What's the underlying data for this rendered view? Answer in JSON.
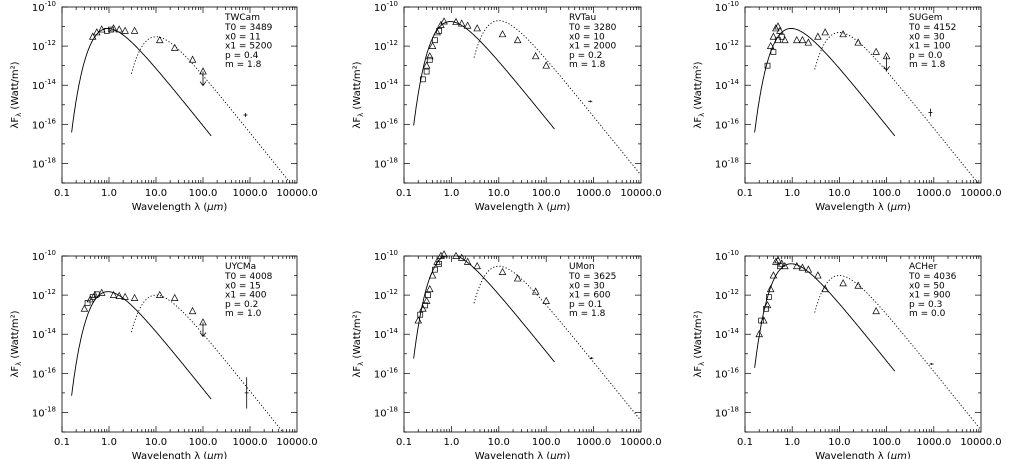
{
  "chart_data": [
    {
      "type": "line",
      "star": "TWCam",
      "params": [
        {
          "key": "T0",
          "value": "3489"
        },
        {
          "key": "x0",
          "value": "11"
        },
        {
          "key": "x1",
          "value": "5200"
        },
        {
          "key": "p",
          "value": "0.4"
        },
        {
          "key": "m",
          "value": "1.8"
        }
      ],
      "xlabel": "Wavelength λ (μm)",
      "ylabel": "λF_λ (Watt/m²)",
      "x_scale": "log",
      "y_scale": "log",
      "xlim": [
        0.1,
        10000
      ],
      "ylim": [
        1e-19,
        1e-10
      ],
      "x_ticks": [
        "0.1",
        "1.0",
        "10.0",
        "100.0",
        "1000.0",
        "10000.0"
      ],
      "y_ticks": [
        -10,
        -12,
        -14,
        -16,
        -18
      ],
      "photosphere_peak": 8e-12,
      "dust_peak": 3e-12,
      "triangles": [
        [
          0.45,
          3e-12
        ],
        [
          0.55,
          5e-12
        ],
        [
          0.7,
          7e-12
        ],
        [
          1.25,
          8e-12
        ],
        [
          1.65,
          7e-12
        ],
        [
          2.2,
          6e-12
        ],
        [
          3.5,
          6e-12
        ],
        [
          12,
          2e-12
        ],
        [
          25,
          8e-13
        ],
        [
          60,
          2e-13
        ],
        [
          100,
          5e-14
        ]
      ],
      "squares": [
        [
          0.9,
          6e-12
        ],
        [
          1.1,
          7e-12
        ]
      ],
      "upper_limits": [
        [
          100,
          5e-14
        ]
      ],
      "errorbars": [
        [
          800,
          3e-16,
          0.1
        ]
      ]
    },
    {
      "type": "line",
      "star": "RVTau",
      "params": [
        {
          "key": "T0",
          "value": "3280"
        },
        {
          "key": "x0",
          "value": "10"
        },
        {
          "key": "x1",
          "value": "2000"
        },
        {
          "key": "p",
          "value": "0.2"
        },
        {
          "key": "m",
          "value": "1.8"
        }
      ],
      "xlabel": "Wavelength λ (μm)",
      "ylabel": "λF_λ (Watt/m²)",
      "x_scale": "log",
      "y_scale": "log",
      "xlim": [
        0.1,
        10000
      ],
      "ylim": [
        1e-19,
        1e-10
      ],
      "x_ticks": [
        "0.1",
        "1.0",
        "10.0",
        "100.0",
        "1000.0",
        "10000.0"
      ],
      "y_ticks": [
        -10,
        -12,
        -14,
        -16,
        -18
      ],
      "photosphere_peak": 1.8e-11,
      "dust_peak": 2e-11,
      "triangles": [
        [
          0.3,
          1e-13
        ],
        [
          0.35,
          3e-13
        ],
        [
          0.4,
          1e-12
        ],
        [
          0.5,
          5e-12
        ],
        [
          0.6,
          1.2e-11
        ],
        [
          0.7,
          1.8e-11
        ],
        [
          1.25,
          1.7e-11
        ],
        [
          1.65,
          1.4e-11
        ],
        [
          2.2,
          1.1e-11
        ],
        [
          3.5,
          8e-12
        ],
        [
          12,
          4e-12
        ],
        [
          25,
          2e-12
        ],
        [
          60,
          3e-13
        ],
        [
          100,
          1e-13
        ]
      ],
      "squares": [
        [
          0.25,
          2e-14
        ],
        [
          0.3,
          5e-14
        ],
        [
          0.35,
          2e-13
        ],
        [
          0.45,
          2e-12
        ],
        [
          0.55,
          6e-12
        ]
      ],
      "upper_limits": [],
      "errorbars": [
        [
          850,
          1.5e-15,
          0.05
        ]
      ]
    },
    {
      "type": "line",
      "star": "SUGem",
      "params": [
        {
          "key": "T0",
          "value": "4152"
        },
        {
          "key": "x0",
          "value": "30"
        },
        {
          "key": "x1",
          "value": "100"
        },
        {
          "key": "p",
          "value": "0.0"
        },
        {
          "key": "m",
          "value": "1.8"
        }
      ],
      "xlabel": "Wavelength λ (μm)",
      "ylabel": "λF_λ (Watt/m²)",
      "x_scale": "log",
      "y_scale": "log",
      "xlim": [
        0.1,
        10000
      ],
      "ylim": [
        1e-19,
        1e-10
      ],
      "x_ticks": [
        "0.1",
        "1.0",
        "10.0",
        "100.0",
        "1000.0",
        "10000.0"
      ],
      "y_ticks": [
        -10,
        -12,
        -14,
        -16,
        -18
      ],
      "photosphere_peak": 8e-12,
      "dust_peak": 5e-12,
      "triangles": [
        [
          0.35,
          1e-12
        ],
        [
          0.4,
          3e-12
        ],
        [
          0.45,
          8e-12
        ],
        [
          0.5,
          1e-11
        ],
        [
          0.55,
          6e-12
        ],
        [
          0.7,
          2e-12
        ],
        [
          1.25,
          2e-12
        ],
        [
          1.65,
          2e-12
        ],
        [
          2.2,
          1.5e-12
        ],
        [
          3.5,
          3e-12
        ],
        [
          5,
          5e-12
        ],
        [
          12,
          4e-12
        ],
        [
          25,
          1.5e-12
        ],
        [
          60,
          5e-13
        ],
        [
          100,
          3e-13
        ]
      ],
      "squares": [
        [
          0.3,
          1e-13
        ],
        [
          0.4,
          5e-13
        ],
        [
          0.5,
          2e-12
        ],
        [
          0.6,
          3e-12
        ]
      ],
      "upper_limits": [
        [
          100,
          3e-13
        ]
      ],
      "errorbars": [
        [
          850,
          4e-16,
          0.2
        ]
      ]
    },
    {
      "type": "line",
      "star": "UYCMa",
      "params": [
        {
          "key": "T0",
          "value": "4008"
        },
        {
          "key": "x0",
          "value": "15"
        },
        {
          "key": "x1",
          "value": "400"
        },
        {
          "key": "p",
          "value": "0.2"
        },
        {
          "key": "m",
          "value": "1.0"
        }
      ],
      "xlabel": "Wavelength λ (μm)",
      "ylabel": "λF_λ (Watt/m²)",
      "x_scale": "log",
      "y_scale": "log",
      "xlim": [
        0.1,
        10000
      ],
      "ylim": [
        1e-19,
        1e-10
      ],
      "x_ticks": [
        "0.1",
        "1.0",
        "10.0",
        "100.0",
        "1000.0",
        "10000.0"
      ],
      "y_ticks": [
        -10,
        -12,
        -14,
        -16,
        -18
      ],
      "photosphere_peak": 1.5e-12,
      "dust_peak": 1e-12,
      "triangles": [
        [
          0.3,
          2e-13
        ],
        [
          0.4,
          6e-13
        ],
        [
          0.5,
          1e-12
        ],
        [
          0.7,
          1.3e-12
        ],
        [
          1.25,
          1e-12
        ],
        [
          1.65,
          9e-13
        ],
        [
          2.2,
          8e-13
        ],
        [
          3.5,
          7e-13
        ],
        [
          12,
          1e-12
        ],
        [
          25,
          7e-13
        ],
        [
          60,
          1.5e-13
        ],
        [
          100,
          4e-14
        ]
      ],
      "squares": [
        [
          0.35,
          4e-13
        ],
        [
          0.45,
          8e-13
        ],
        [
          0.55,
          1.1e-12
        ]
      ],
      "upper_limits": [
        [
          100,
          4e-14
        ]
      ],
      "errorbars": [
        [
          850,
          1e-17,
          0.8
        ]
      ]
    },
    {
      "type": "line",
      "star": "UMon",
      "params": [
        {
          "key": "T0",
          "value": "3625"
        },
        {
          "key": "x0",
          "value": "30"
        },
        {
          "key": "x1",
          "value": "600"
        },
        {
          "key": "p",
          "value": "0.1"
        },
        {
          "key": "m",
          "value": "1.8"
        }
      ],
      "xlabel": "Wavelength λ (μm)",
      "ylabel": "λF_λ (Watt/m²)",
      "x_scale": "log",
      "y_scale": "log",
      "xlim": [
        0.1,
        10000
      ],
      "ylim": [
        1e-19,
        1e-10
      ],
      "x_ticks": [
        "0.1",
        "1.0",
        "10.0",
        "100.0",
        "1000.0",
        "10000.0"
      ],
      "y_ticks": [
        -10,
        -12,
        -14,
        -16,
        -18
      ],
      "photosphere_peak": 1.2e-10,
      "dust_peak": 3e-11,
      "triangles": [
        [
          0.2,
          5e-14
        ],
        [
          0.25,
          2e-13
        ],
        [
          0.3,
          5e-13
        ],
        [
          0.35,
          2e-12
        ],
        [
          0.4,
          1e-11
        ],
        [
          0.5,
          5e-11
        ],
        [
          0.6,
          1e-10
        ],
        [
          0.7,
          1.2e-10
        ],
        [
          1.25,
          1e-10
        ],
        [
          1.65,
          8e-11
        ],
        [
          2.2,
          5e-11
        ],
        [
          3.5,
          3e-11
        ],
        [
          12,
          1.5e-11
        ],
        [
          25,
          7e-12
        ],
        [
          60,
          1.5e-12
        ],
        [
          100,
          5e-13
        ]
      ],
      "squares": [
        [
          0.22,
          1e-13
        ],
        [
          0.28,
          3e-13
        ],
        [
          0.32,
          1e-12
        ],
        [
          0.45,
          2e-11
        ],
        [
          0.55,
          4e-11
        ]
      ],
      "upper_limits": [],
      "errorbars": [
        [
          900,
          6e-16,
          0.05
        ]
      ]
    },
    {
      "type": "line",
      "star": "ACHer",
      "params": [
        {
          "key": "T0",
          "value": "4036"
        },
        {
          "key": "x0",
          "value": "50"
        },
        {
          "key": "x1",
          "value": "900"
        },
        {
          "key": "p",
          "value": "0.3"
        },
        {
          "key": "m",
          "value": "0.0"
        }
      ],
      "xlabel": "Wavelength λ (μm)",
      "ylabel": "λF_λ (Watt/m²)",
      "x_scale": "log",
      "y_scale": "log",
      "xlim": [
        0.1,
        10000
      ],
      "ylim": [
        1e-19,
        1e-10
      ],
      "x_ticks": [
        "0.1",
        "1.0",
        "10.0",
        "100.0",
        "1000.0",
        "10000.0"
      ],
      "y_ticks": [
        -10,
        -12,
        -14,
        -16,
        -18
      ],
      "photosphere_peak": 4e-11,
      "dust_peak": 1e-11,
      "triangles": [
        [
          0.2,
          1e-14
        ],
        [
          0.25,
          5e-14
        ],
        [
          0.3,
          3e-13
        ],
        [
          0.35,
          2e-12
        ],
        [
          0.4,
          1e-11
        ],
        [
          0.45,
          5e-11
        ],
        [
          0.5,
          6e-11
        ],
        [
          0.6,
          4e-11
        ],
        [
          0.7,
          3e-11
        ],
        [
          1.25,
          3e-11
        ],
        [
          1.65,
          2.5e-11
        ],
        [
          2.2,
          2e-11
        ],
        [
          3.5,
          1e-11
        ],
        [
          5,
          2e-12
        ],
        [
          12,
          4e-12
        ],
        [
          25,
          3e-12
        ],
        [
          60,
          1.5e-13
        ]
      ],
      "squares": [
        [
          0.22,
          5e-14
        ],
        [
          0.28,
          2e-13
        ],
        [
          0.32,
          8e-13
        ],
        [
          0.55,
          3e-11
        ]
      ],
      "upper_limits": [],
      "errorbars": [
        [
          900,
          3e-16,
          0.05
        ]
      ]
    }
  ]
}
